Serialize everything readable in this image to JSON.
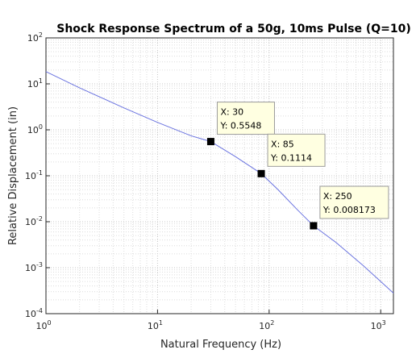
{
  "chart_data": {
    "type": "line",
    "title": "Shock Response Spectrum of a 50g, 10ms Pulse (Q=10)",
    "xlabel": "Natural Frequency (Hz)",
    "ylabel": "Relative Displacement (in)",
    "xscale": "log",
    "yscale": "log",
    "xlim": [
      1,
      1300
    ],
    "ylim": [
      0.0001,
      100
    ],
    "grid": true,
    "line_color": "#6b74e0",
    "x_ticks": [
      {
        "base": "10",
        "exp": "0",
        "value": 1
      },
      {
        "base": "10",
        "exp": "1",
        "value": 10
      },
      {
        "base": "10",
        "exp": "2",
        "value": 100
      },
      {
        "base": "10",
        "exp": "3",
        "value": 1000
      }
    ],
    "y_ticks": [
      {
        "base": "10",
        "exp": "-4",
        "value": 0.0001
      },
      {
        "base": "10",
        "exp": "-3",
        "value": 0.001
      },
      {
        "base": "10",
        "exp": "-2",
        "value": 0.01
      },
      {
        "base": "10",
        "exp": "-1",
        "value": 0.1
      },
      {
        "base": "10",
        "exp": "0",
        "value": 1
      },
      {
        "base": "10",
        "exp": "1",
        "value": 10
      },
      {
        "base": "10",
        "exp": "2",
        "value": 100
      }
    ],
    "series": [
      {
        "x": [
          1,
          2,
          5,
          10,
          20,
          30,
          50,
          85,
          120,
          180,
          250,
          400,
          700,
          1000,
          1300
        ],
        "y": [
          18.5,
          8.2,
          3.0,
          1.45,
          0.74,
          0.5548,
          0.26,
          0.1114,
          0.05,
          0.018,
          0.008173,
          0.0035,
          0.0011,
          0.0005,
          0.00028
        ]
      }
    ],
    "annotations": [
      {
        "x": 30,
        "y": 0.5548,
        "x_text": "X: 30",
        "y_text": "Y: 0.5548"
      },
      {
        "x": 85,
        "y": 0.1114,
        "x_text": "X: 85",
        "y_text": "Y: 0.1114"
      },
      {
        "x": 250,
        "y": 0.008173,
        "x_text": "X: 250",
        "y_text": "Y: 0.008173"
      }
    ]
  }
}
